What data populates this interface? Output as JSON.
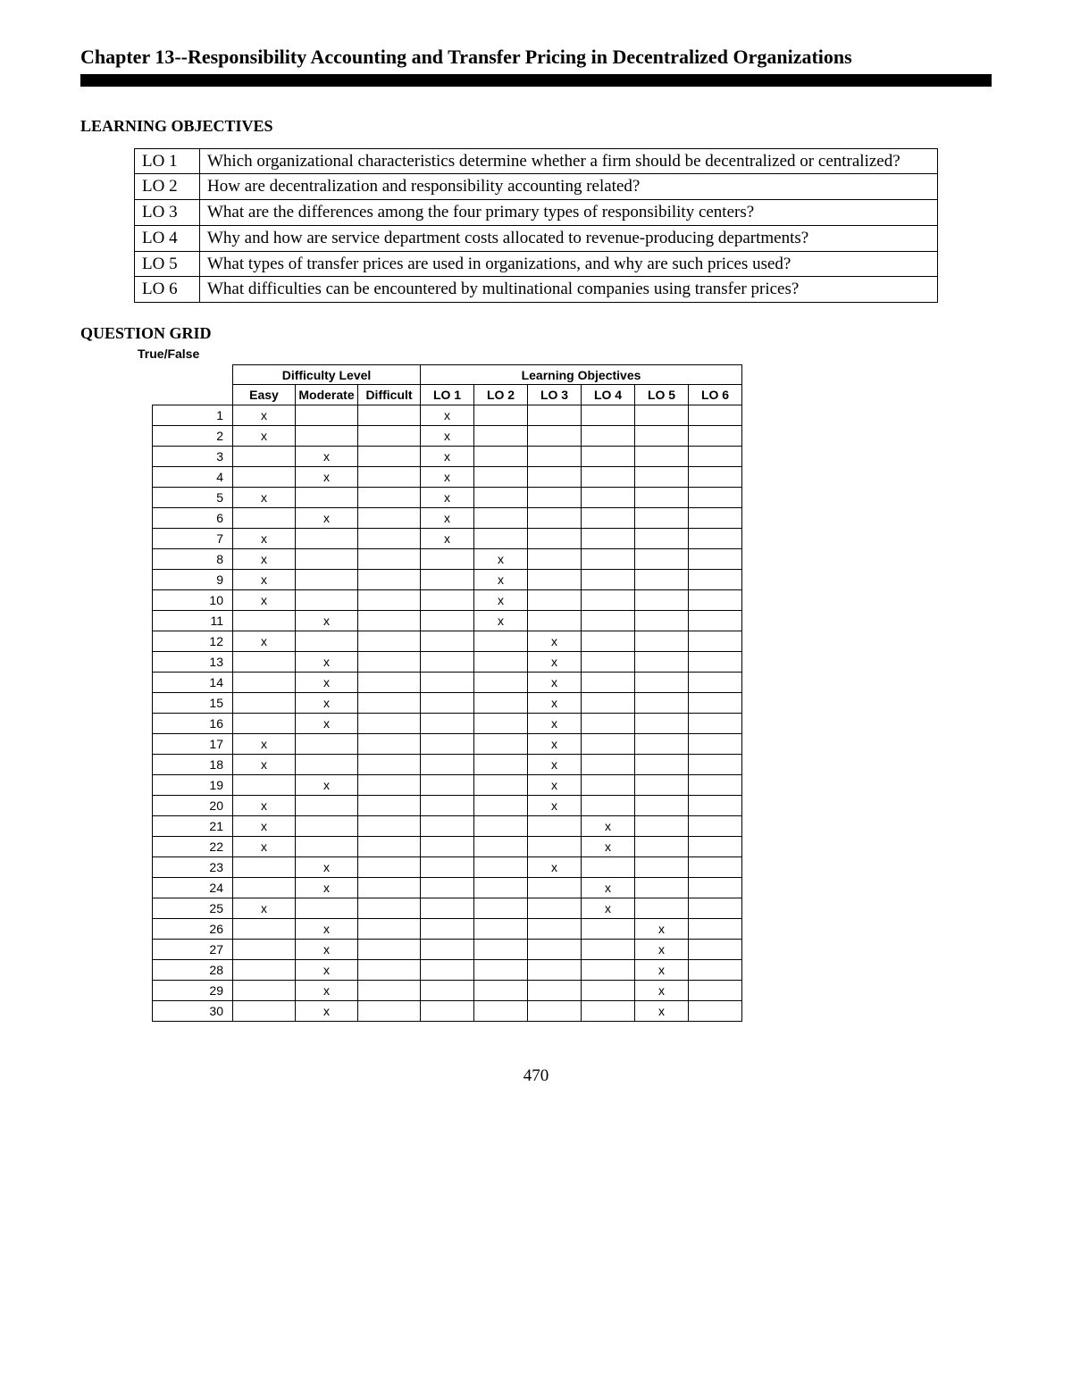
{
  "chapter_title": "Chapter 13--Responsibility Accounting and Transfer Pricing in Decentralized Organizations",
  "learning_objectives_heading": "LEARNING OBJECTIVES",
  "learning_objectives": [
    {
      "code": "LO 1",
      "text": "Which organizational characteristics determine whether a firm should be decentralized or centralized?"
    },
    {
      "code": "LO 2",
      "text": "How are decentralization and responsibility accounting related?"
    },
    {
      "code": "LO 3",
      "text": "What are the differences among the four primary types of responsibility centers?"
    },
    {
      "code": "LO 4",
      "text": "Why and how are service department costs allocated to revenue-producing departments?"
    },
    {
      "code": "LO 5",
      "text": "What types of transfer prices are used in organizations, and why are such prices used?"
    },
    {
      "code": "LO 6",
      "text": "What difficulties can be encountered by multinational companies using transfer prices?"
    }
  ],
  "question_grid_heading": "QUESTION GRID",
  "tf_label": "True/False",
  "grid_headers": {
    "difficulty_group": "Difficulty Level",
    "lo_group": "Learning Objectives",
    "difficulty_cols": [
      "Easy",
      "Moderate",
      "Difficult"
    ],
    "lo_cols": [
      "LO 1",
      "LO 2",
      "LO 3",
      "LO 4",
      "LO 5",
      "LO 6"
    ]
  },
  "grid_rows": [
    {
      "n": "1",
      "diff": [
        "x",
        "",
        ""
      ],
      "lo": [
        "x",
        "",
        "",
        "",
        "",
        ""
      ]
    },
    {
      "n": "2",
      "diff": [
        "x",
        "",
        ""
      ],
      "lo": [
        "x",
        "",
        "",
        "",
        "",
        ""
      ]
    },
    {
      "n": "3",
      "diff": [
        "",
        "x",
        ""
      ],
      "lo": [
        "x",
        "",
        "",
        "",
        "",
        ""
      ]
    },
    {
      "n": "4",
      "diff": [
        "",
        "x",
        ""
      ],
      "lo": [
        "x",
        "",
        "",
        "",
        "",
        ""
      ]
    },
    {
      "n": "5",
      "diff": [
        "x",
        "",
        ""
      ],
      "lo": [
        "x",
        "",
        "",
        "",
        "",
        ""
      ]
    },
    {
      "n": "6",
      "diff": [
        "",
        "x",
        ""
      ],
      "lo": [
        "x",
        "",
        "",
        "",
        "",
        ""
      ]
    },
    {
      "n": "7",
      "diff": [
        "x",
        "",
        ""
      ],
      "lo": [
        "x",
        "",
        "",
        "",
        "",
        ""
      ]
    },
    {
      "n": "8",
      "diff": [
        "x",
        "",
        ""
      ],
      "lo": [
        "",
        "x",
        "",
        "",
        "",
        ""
      ]
    },
    {
      "n": "9",
      "diff": [
        "x",
        "",
        ""
      ],
      "lo": [
        "",
        "x",
        "",
        "",
        "",
        ""
      ]
    },
    {
      "n": "10",
      "diff": [
        "x",
        "",
        ""
      ],
      "lo": [
        "",
        "x",
        "",
        "",
        "",
        ""
      ]
    },
    {
      "n": "11",
      "diff": [
        "",
        "x",
        ""
      ],
      "lo": [
        "",
        "x",
        "",
        "",
        "",
        ""
      ]
    },
    {
      "n": "12",
      "diff": [
        "x",
        "",
        ""
      ],
      "lo": [
        "",
        "",
        "x",
        "",
        "",
        ""
      ]
    },
    {
      "n": "13",
      "diff": [
        "",
        "x",
        ""
      ],
      "lo": [
        "",
        "",
        "x",
        "",
        "",
        ""
      ]
    },
    {
      "n": "14",
      "diff": [
        "",
        "x",
        ""
      ],
      "lo": [
        "",
        "",
        "x",
        "",
        "",
        ""
      ]
    },
    {
      "n": "15",
      "diff": [
        "",
        "x",
        ""
      ],
      "lo": [
        "",
        "",
        "x",
        "",
        "",
        ""
      ]
    },
    {
      "n": "16",
      "diff": [
        "",
        "x",
        ""
      ],
      "lo": [
        "",
        "",
        "x",
        "",
        "",
        ""
      ]
    },
    {
      "n": "17",
      "diff": [
        "x",
        "",
        ""
      ],
      "lo": [
        "",
        "",
        "x",
        "",
        "",
        ""
      ]
    },
    {
      "n": "18",
      "diff": [
        "x",
        "",
        ""
      ],
      "lo": [
        "",
        "",
        "x",
        "",
        "",
        ""
      ]
    },
    {
      "n": "19",
      "diff": [
        "",
        "x",
        ""
      ],
      "lo": [
        "",
        "",
        "x",
        "",
        "",
        ""
      ]
    },
    {
      "n": "20",
      "diff": [
        "x",
        "",
        ""
      ],
      "lo": [
        "",
        "",
        "x",
        "",
        "",
        ""
      ]
    },
    {
      "n": "21",
      "diff": [
        "x",
        "",
        ""
      ],
      "lo": [
        "",
        "",
        "",
        "x",
        "",
        ""
      ]
    },
    {
      "n": "22",
      "diff": [
        "x",
        "",
        ""
      ],
      "lo": [
        "",
        "",
        "",
        "x",
        "",
        ""
      ]
    },
    {
      "n": "23",
      "diff": [
        "",
        "x",
        ""
      ],
      "lo": [
        "",
        "",
        "x",
        "",
        "",
        ""
      ]
    },
    {
      "n": "24",
      "diff": [
        "",
        "x",
        ""
      ],
      "lo": [
        "",
        "",
        "",
        "x",
        "",
        ""
      ]
    },
    {
      "n": "25",
      "diff": [
        "x",
        "",
        ""
      ],
      "lo": [
        "",
        "",
        "",
        "x",
        "",
        ""
      ]
    },
    {
      "n": "26",
      "diff": [
        "",
        "x",
        ""
      ],
      "lo": [
        "",
        "",
        "",
        "",
        "x",
        ""
      ]
    },
    {
      "n": "27",
      "diff": [
        "",
        "x",
        ""
      ],
      "lo": [
        "",
        "",
        "",
        "",
        "x",
        ""
      ]
    },
    {
      "n": "28",
      "diff": [
        "",
        "x",
        ""
      ],
      "lo": [
        "",
        "",
        "",
        "",
        "x",
        ""
      ]
    },
    {
      "n": "29",
      "diff": [
        "",
        "x",
        ""
      ],
      "lo": [
        "",
        "",
        "",
        "",
        "x",
        ""
      ]
    },
    {
      "n": "30",
      "diff": [
        "",
        "x",
        ""
      ],
      "lo": [
        "",
        "",
        "",
        "",
        "x",
        ""
      ]
    }
  ],
  "page_number": "470"
}
